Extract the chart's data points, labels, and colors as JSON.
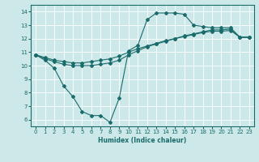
{
  "xlabel": "Humidex (Indice chaleur)",
  "bg_color": "#cce8e8",
  "line_color": "#1a6b6b",
  "grid_color": "#ffffff",
  "xlim": [
    -0.5,
    23.5
  ],
  "ylim": [
    5.5,
    14.5
  ],
  "xticks": [
    0,
    1,
    2,
    3,
    4,
    5,
    6,
    7,
    8,
    9,
    10,
    11,
    12,
    13,
    14,
    15,
    16,
    17,
    18,
    19,
    20,
    21,
    22,
    23
  ],
  "yticks": [
    6,
    7,
    8,
    9,
    10,
    11,
    12,
    13,
    14
  ],
  "line1_x": [
    0,
    1,
    2,
    3,
    4,
    5,
    6,
    7,
    8,
    9,
    10,
    11,
    12,
    13,
    14,
    15,
    16,
    17,
    18,
    19,
    20,
    21,
    22,
    23
  ],
  "line1_y": [
    10.8,
    10.4,
    9.8,
    8.5,
    7.7,
    6.6,
    6.3,
    6.3,
    5.8,
    7.6,
    11.1,
    11.5,
    13.4,
    13.9,
    13.9,
    13.9,
    13.8,
    13.0,
    12.9,
    12.8,
    12.8,
    12.8,
    12.1,
    12.1
  ],
  "line2_x": [
    0,
    1,
    2,
    3,
    4,
    5,
    6,
    7,
    8,
    9,
    10,
    11,
    12,
    13,
    14,
    15,
    16,
    17,
    18,
    19,
    20,
    21,
    22,
    23
  ],
  "line2_y": [
    10.8,
    10.5,
    10.3,
    10.1,
    10.0,
    10.0,
    10.0,
    10.1,
    10.2,
    10.4,
    10.8,
    11.1,
    11.4,
    11.6,
    11.8,
    12.0,
    12.2,
    12.35,
    12.5,
    12.65,
    12.65,
    12.7,
    12.1,
    12.1
  ],
  "line3_x": [
    0,
    1,
    2,
    3,
    4,
    5,
    6,
    7,
    8,
    9,
    10,
    11,
    12,
    13,
    14,
    15,
    16,
    17,
    18,
    19,
    20,
    21,
    22,
    23
  ],
  "line3_y": [
    10.8,
    10.6,
    10.4,
    10.3,
    10.2,
    10.2,
    10.3,
    10.4,
    10.5,
    10.7,
    11.0,
    11.25,
    11.45,
    11.65,
    11.85,
    12.0,
    12.15,
    12.3,
    12.45,
    12.55,
    12.55,
    12.6,
    12.1,
    12.1
  ]
}
